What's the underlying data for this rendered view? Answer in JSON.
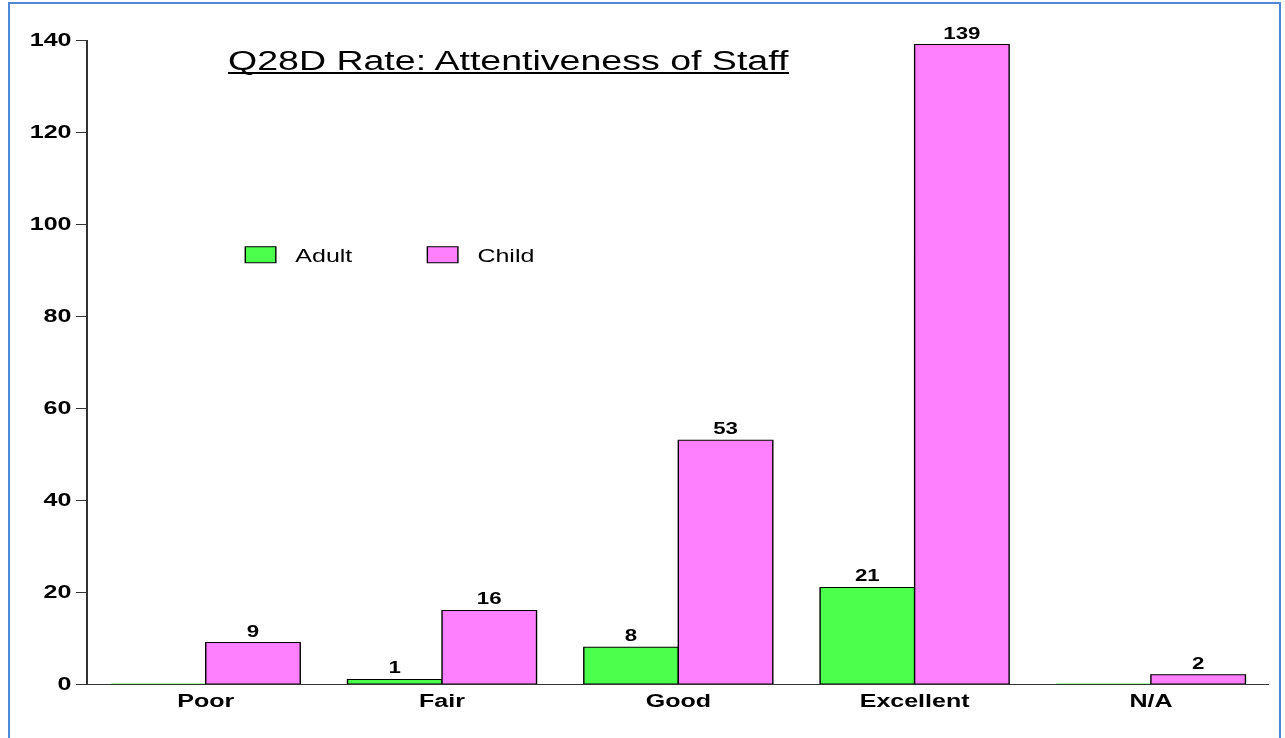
{
  "chart_data": {
    "type": "bar",
    "title": "Q28D Rate: Attentiveness of Staff",
    "categories": [
      "Poor",
      "Fair",
      "Good",
      "Excellent",
      "N/A"
    ],
    "series": [
      {
        "name": "Adult",
        "color": "#4cff4c",
        "values": [
          0,
          1,
          8,
          21,
          0
        ],
        "value_labels": [
          null,
          "1",
          "8",
          "21",
          null
        ]
      },
      {
        "name": "Child",
        "color": "#ff80ff",
        "values": [
          9,
          16,
          53,
          139,
          2
        ],
        "value_labels": [
          "9",
          "16",
          "53",
          "139",
          "2"
        ]
      }
    ],
    "ylim": [
      0,
      140
    ],
    "yticks": [
      0,
      20,
      40,
      60,
      80,
      100,
      120,
      140
    ],
    "grid": false,
    "legend": "top left"
  }
}
